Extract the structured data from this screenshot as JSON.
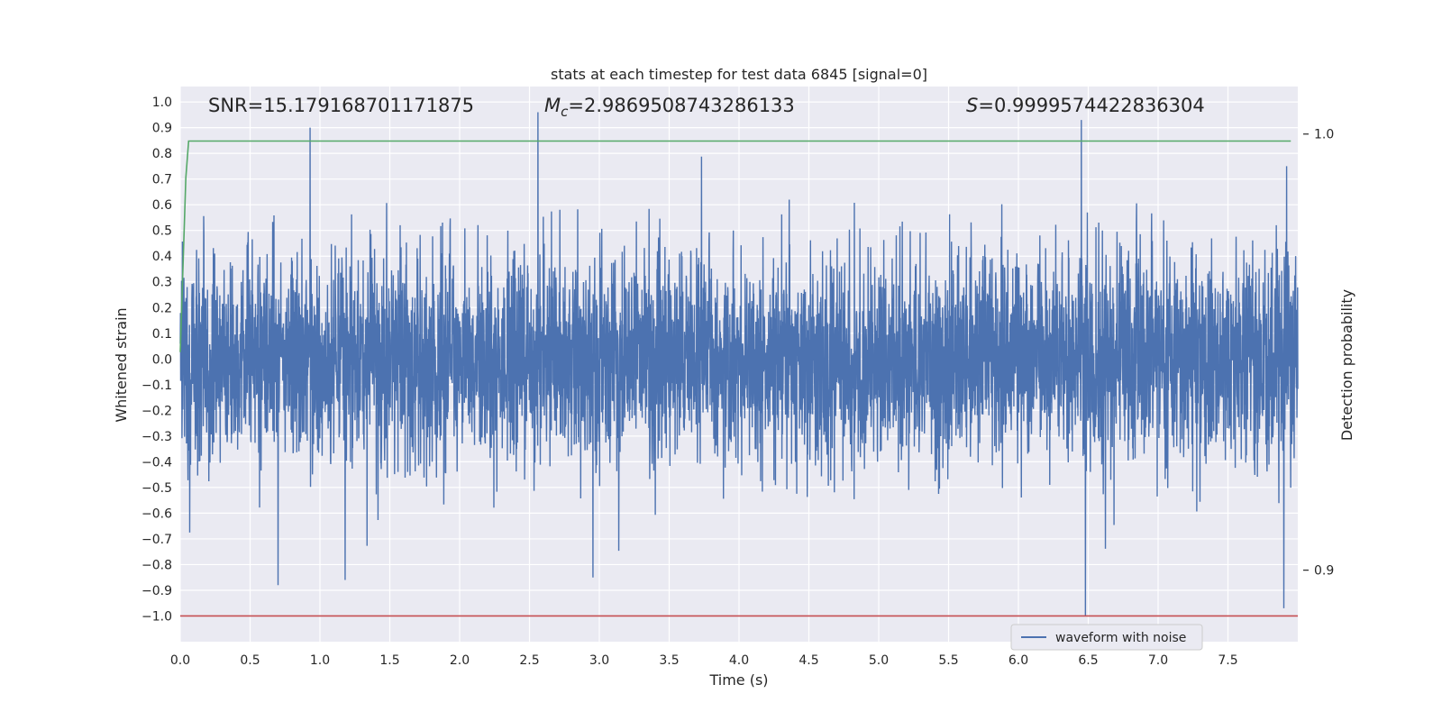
{
  "chart_data": {
    "type": "line",
    "title": "stats at each timestep for test data 6845 [signal=0]",
    "xlabel": "Time (s)",
    "ylabel": "Whitened strain",
    "y2label": "Detection probability",
    "xlim": [
      0.0,
      8.0
    ],
    "ylim": [
      -1.1,
      1.06
    ],
    "y2lim": [
      0.8836,
      1.0109
    ],
    "xticks": [
      "0.0",
      "0.5",
      "1.0",
      "1.5",
      "2.0",
      "2.5",
      "3.0",
      "3.5",
      "4.0",
      "4.5",
      "5.0",
      "5.5",
      "6.0",
      "6.5",
      "7.0",
      "7.5"
    ],
    "yticks": [
      "1.0",
      "0.9",
      "0.8",
      "0.7",
      "0.6",
      "0.5",
      "0.4",
      "0.3",
      "0.2",
      "0.1",
      "0.0",
      "−0.1",
      "−0.2",
      "−0.3",
      "−0.4",
      "−0.5",
      "−0.6",
      "−0.7",
      "−0.8",
      "−0.9",
      "−1.0"
    ],
    "y2ticks": [
      "1.0",
      "0.9"
    ],
    "grid": true,
    "legend_placement": "lower-right",
    "annotations": {
      "snr": "SNR=15.179168701171875",
      "mc_symbol": "M",
      "mc_subscript": "c",
      "mc_value": "=2.9869508743286133",
      "s_symbol": "S",
      "s_value": "=0.9999574422836304"
    },
    "series": [
      {
        "name": "waveform with noise",
        "axis": "left",
        "color": "#4c72b0",
        "description_kind": "noise",
        "t_range": [
          0.0,
          8.0
        ],
        "amplitude_envelope": [
          -1.0,
          0.96
        ],
        "notable_peaks": [
          {
            "t": 0.93,
            "v": 0.9
          },
          {
            "t": 2.56,
            "v": 0.96
          },
          {
            "t": 6.45,
            "v": 0.93
          },
          {
            "t": 7.92,
            "v": 0.75
          },
          {
            "t": 0.7,
            "v": -0.88
          },
          {
            "t": 1.18,
            "v": -0.86
          },
          {
            "t": 6.48,
            "v": -1.0
          },
          {
            "t": 7.9,
            "v": -0.97
          }
        ]
      },
      {
        "axis": "right",
        "color": "#55a868",
        "x": [
          0.0,
          0.02,
          0.04,
          0.06,
          7.95
        ],
        "y": [
          0.95,
          0.97,
          0.99,
          0.9984,
          0.9984
        ]
      },
      {
        "axis": "left",
        "color": "#c44e52",
        "x": [
          0.0,
          8.0
        ],
        "y": [
          -1.0,
          -1.0
        ]
      }
    ]
  },
  "colors": {
    "plot_bg": "#eaeaf2",
    "grid": "#ffffff",
    "waveform": "#4c72b0",
    "probability": "#55a868",
    "threshold": "#c44e52"
  }
}
